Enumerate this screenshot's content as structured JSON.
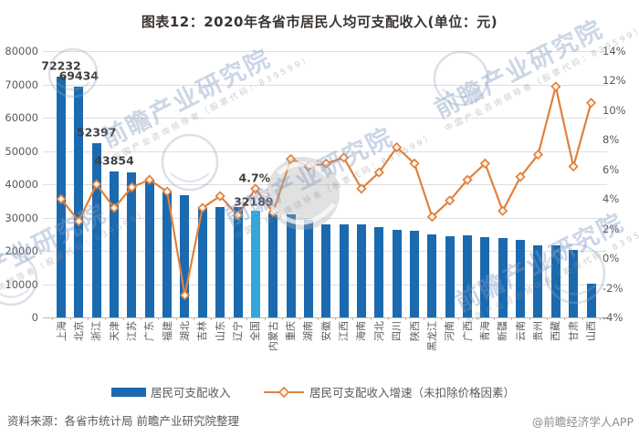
{
  "title": "图表12：2020年各省市居民人均可支配收入(单位：元)",
  "source_note": "资料来源：各省市统计局 前瞻产业研究院整理",
  "brand": "@前瞻经济学人APP",
  "watermark": {
    "text": "前瞻产业研究院",
    "subtext": "中国产业咨询领导者（股票代码：839599）"
  },
  "legend": [
    {
      "label": "居民可支配收入",
      "type": "bar"
    },
    {
      "label": "居民可支配收入增速（未扣除价格因素）",
      "type": "line"
    }
  ],
  "colors": {
    "bar": "#1b6ab0",
    "bar_highlight": "#34a7da",
    "line": "#e0813c",
    "marker_fill": "#fdf6ee",
    "grid": "#dedede",
    "axis_text": "#595959",
    "value_label_text": "#3f3f3f",
    "title_text": "#3a3532"
  },
  "chart_data": {
    "type": "bar",
    "title": "图表12：2020年各省市居民人均可支配收入(单位：元)",
    "categories": [
      "上海",
      "北京",
      "浙江",
      "天津",
      "江苏",
      "广东",
      "福建",
      "湖北",
      "吉林",
      "山东",
      "辽宁",
      "全国",
      "内蒙古",
      "重庆",
      "湖南",
      "安徽",
      "江西",
      "海南",
      "河北",
      "四川",
      "陕西",
      "黑龙江",
      "河南",
      "广西",
      "青海",
      "新疆",
      "云南",
      "贵州",
      "西藏",
      "甘肃",
      "山西"
    ],
    "series": [
      {
        "name": "居民可支配收入",
        "type": "bar",
        "axis": "left",
        "values": [
          72232,
          69434,
          52397,
          43854,
          43500,
          41100,
          37400,
          36600,
          33000,
          33200,
          33050,
          32189,
          31200,
          31000,
          29400,
          28050,
          28000,
          27900,
          27100,
          26400,
          26100,
          24900,
          24500,
          24700,
          24100,
          23800,
          23300,
          21600,
          21600,
          20300,
          10100
        ]
      },
      {
        "name": "居民可支配收入增速（未扣除价格因素）",
        "type": "line",
        "axis": "right",
        "values": [
          4.0,
          2.5,
          5.0,
          3.4,
          4.8,
          5.3,
          4.5,
          -2.5,
          3.4,
          4.2,
          2.9,
          4.7,
          3.1,
          6.7,
          6.2,
          6.4,
          6.8,
          4.7,
          5.8,
          7.5,
          6.4,
          2.8,
          3.9,
          5.3,
          6.4,
          3.2,
          5.5,
          7.0,
          11.6,
          6.2,
          10.5
        ]
      }
    ],
    "left_axis": {
      "min": 0,
      "max": 80000,
      "step": 10000,
      "ticks": [
        "0",
        "10000",
        "20000",
        "30000",
        "40000",
        "50000",
        "60000",
        "70000",
        "80000"
      ]
    },
    "right_axis": {
      "min": -4,
      "max": 14,
      "step": 2,
      "ticks": [
        "-4%",
        "-2%",
        "0%",
        "2%",
        "4%",
        "6%",
        "8%",
        "10%",
        "12%",
        "14%"
      ]
    },
    "highlight_index": 11,
    "bar_value_labels": [
      {
        "index": 0,
        "text": "72232"
      },
      {
        "index": 1,
        "text": "69434"
      },
      {
        "index": 2,
        "text": "52397"
      },
      {
        "index": 3,
        "text": "43854"
      }
    ],
    "national_annotation": {
      "index": 11,
      "growth_label": "4.7%",
      "income_label": "32189"
    },
    "grid": true,
    "legend_position": "bottom"
  }
}
